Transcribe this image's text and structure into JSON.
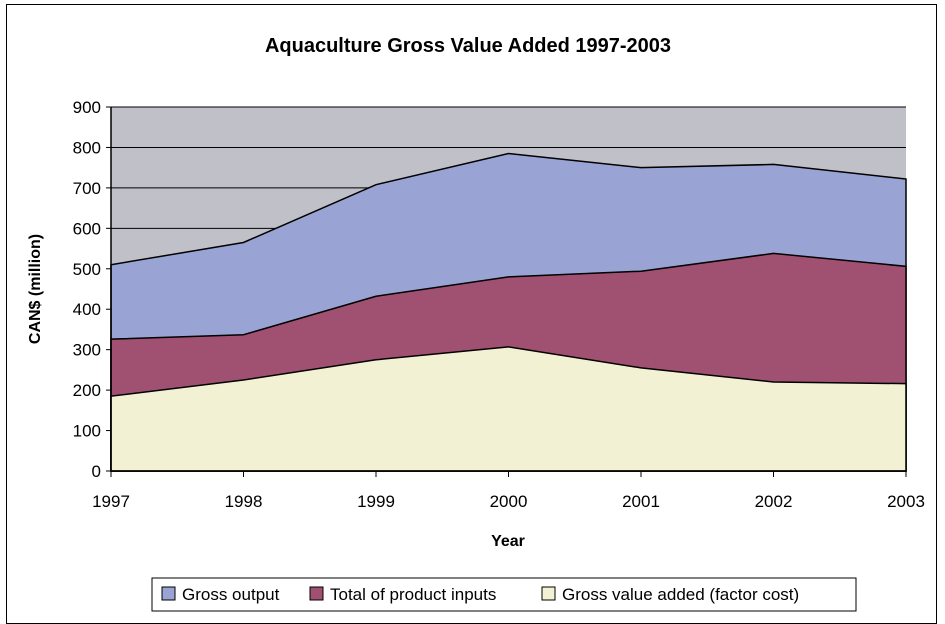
{
  "chart_data": {
    "type": "area",
    "title": "Aquaculture Gross Value Added 1997-2003",
    "xlabel": "Year",
    "ylabel": "CAN$ (million)",
    "categories": [
      "1997",
      "1998",
      "1999",
      "2000",
      "2001",
      "2002",
      "2003"
    ],
    "ylim": [
      0,
      900
    ],
    "yticks": [
      "0",
      "100",
      "200",
      "300",
      "400",
      "500",
      "600",
      "700",
      "800",
      "900"
    ],
    "grid": true,
    "legend_position": "bottom",
    "plot_background": "#c0c0c8",
    "series": [
      {
        "name": "Gross output",
        "color": "#99a4d4",
        "values": [
          510,
          565,
          708,
          785,
          750,
          758,
          722
        ]
      },
      {
        "name": "Total of product inputs",
        "color": "#a05070",
        "values": [
          326,
          337,
          432,
          480,
          494,
          538,
          506
        ]
      },
      {
        "name": "Gross value added (factor cost)",
        "color": "#f3f1d3",
        "values": [
          185,
          225,
          275,
          307,
          255,
          220,
          216
        ]
      }
    ]
  }
}
